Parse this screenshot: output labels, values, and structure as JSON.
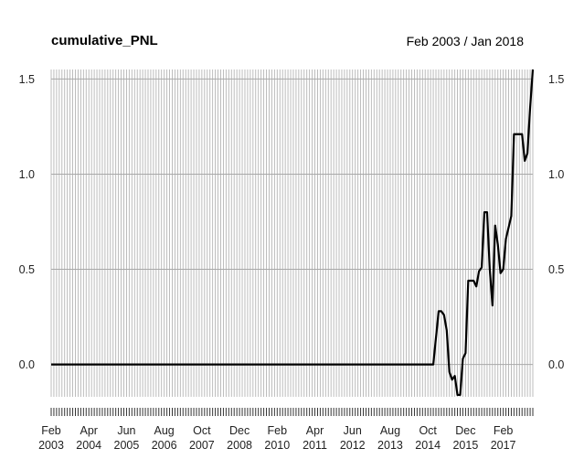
{
  "chart_data": {
    "type": "line",
    "title": "cumulative_PNL",
    "date_range": "Feb 2003 / Jan 2018",
    "xlabel": "",
    "ylabel": "",
    "ylim": [
      -0.17,
      1.55
    ],
    "y_ticks": [
      "0.0",
      "0.5",
      "1.0",
      "1.5"
    ],
    "y_tick_values": [
      0.0,
      0.5,
      1.0,
      1.5
    ],
    "x_tick_labels": [
      {
        "month": "Feb",
        "year": "2003"
      },
      {
        "month": "Apr",
        "year": "2004"
      },
      {
        "month": "Jun",
        "year": "2005"
      },
      {
        "month": "Aug",
        "year": "2006"
      },
      {
        "month": "Oct",
        "year": "2007"
      },
      {
        "month": "Dec",
        "year": "2008"
      },
      {
        "month": "Feb",
        "year": "2010"
      },
      {
        "month": "Apr",
        "year": "2011"
      },
      {
        "month": "Jun",
        "year": "2012"
      },
      {
        "month": "Aug",
        "year": "2013"
      },
      {
        "month": "Oct",
        "year": "2014"
      },
      {
        "month": "Dec",
        "year": "2015"
      },
      {
        "month": "Feb",
        "year": "2017"
      }
    ],
    "grid": true,
    "x_start": "2003-02",
    "x_end": "2018-01",
    "series": [
      {
        "points": [
          [
            "2003-02",
            0.0
          ],
          [
            "2014-12",
            0.0
          ],
          [
            "2015-02",
            0.28
          ],
          [
            "2015-03",
            0.28
          ],
          [
            "2015-04",
            0.26
          ],
          [
            "2015-05",
            0.18
          ],
          [
            "2015-06",
            -0.04
          ],
          [
            "2015-07",
            -0.08
          ],
          [
            "2015-08",
            -0.06
          ],
          [
            "2015-09",
            -0.16
          ],
          [
            "2015-10",
            -0.16
          ],
          [
            "2015-11",
            0.03
          ],
          [
            "2015-12",
            0.06
          ],
          [
            "2016-01",
            0.44
          ],
          [
            "2016-02",
            0.44
          ],
          [
            "2016-03",
            0.44
          ],
          [
            "2016-04",
            0.41
          ],
          [
            "2016-05",
            0.49
          ],
          [
            "2016-06",
            0.51
          ],
          [
            "2016-07",
            0.8
          ],
          [
            "2016-08",
            0.8
          ],
          [
            "2016-09",
            0.5
          ],
          [
            "2016-10",
            0.31
          ],
          [
            "2016-11",
            0.73
          ],
          [
            "2016-12",
            0.63
          ],
          [
            "2017-01",
            0.48
          ],
          [
            "2017-02",
            0.5
          ],
          [
            "2017-03",
            0.66
          ],
          [
            "2017-04",
            0.72
          ],
          [
            "2017-05",
            0.78
          ],
          [
            "2017-06",
            1.21
          ],
          [
            "2017-07",
            1.21
          ],
          [
            "2017-08",
            1.21
          ],
          [
            "2017-09",
            1.21
          ],
          [
            "2017-10",
            1.07
          ],
          [
            "2017-11",
            1.11
          ],
          [
            "2017-12",
            1.35
          ],
          [
            "2018-01",
            1.55
          ]
        ]
      }
    ]
  }
}
